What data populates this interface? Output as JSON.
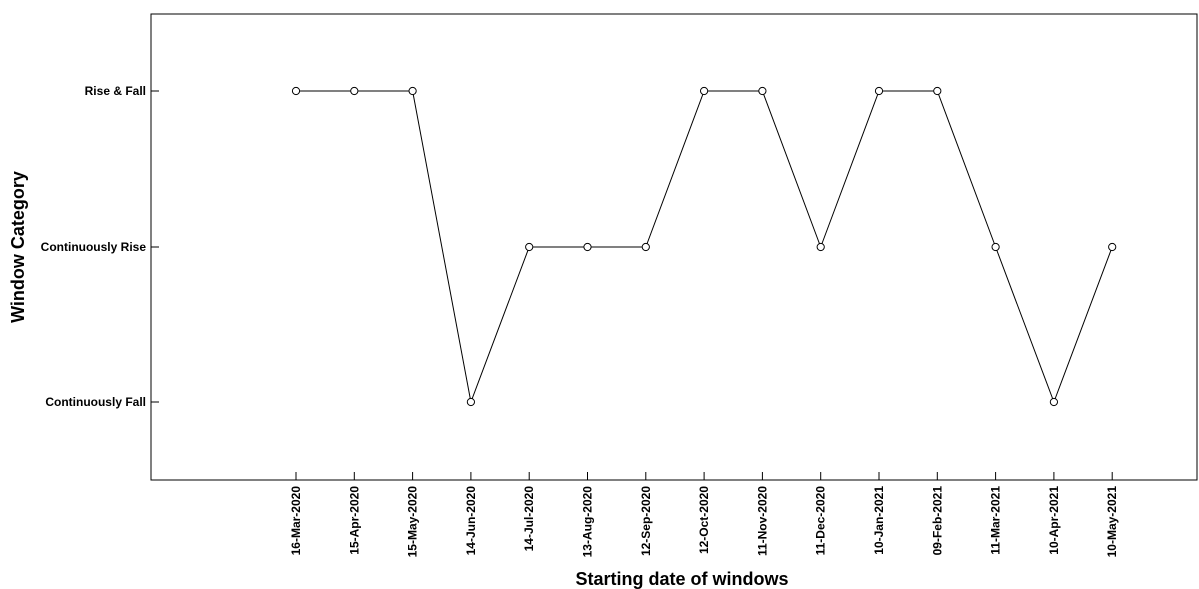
{
  "chart_data": {
    "type": "line",
    "title": "",
    "xlabel": "Starting date of windows",
    "ylabel": "Window Category",
    "categories": [
      "16-Mar-2020",
      "15-Apr-2020",
      "15-May-2020",
      "14-Jun-2020",
      "14-Jul-2020",
      "13-Aug-2020",
      "12-Sep-2020",
      "12-Oct-2020",
      "11-Nov-2020",
      "11-Dec-2020",
      "10-Jan-2021",
      "09-Feb-2021",
      "11-Mar-2021",
      "10-Apr-2021",
      "10-May-2021"
    ],
    "y_categories": [
      "Continuously Fall",
      "Continuously Rise",
      "Rise & Fall"
    ],
    "series": [
      {
        "values": [
          "Rise & Fall",
          "Rise & Fall",
          "Rise & Fall",
          "Continuously Fall",
          "Continuously Rise",
          "Continuously Rise",
          "Continuously Rise",
          "Rise & Fall",
          "Rise & Fall",
          "Continuously Rise",
          "Rise & Fall",
          "Rise & Fall",
          "Continuously Rise",
          "Continuously Fall",
          "Continuously Rise"
        ]
      }
    ],
    "marker": "open-circle",
    "line_color": "#000000",
    "grid": false,
    "legend": "none"
  }
}
